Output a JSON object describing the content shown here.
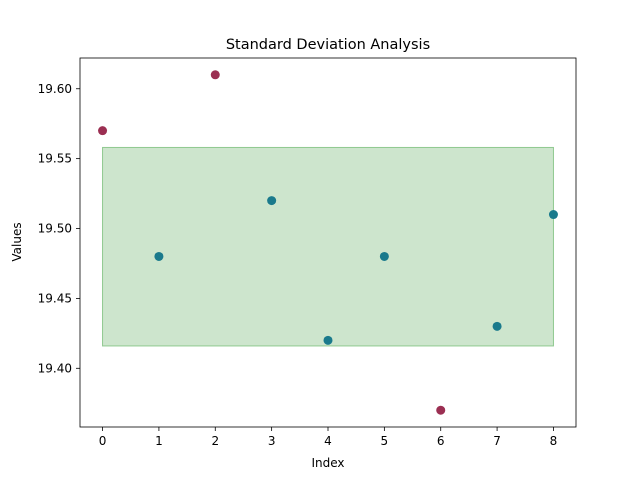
{
  "chart_data": {
    "type": "scatter",
    "title": "Standard Deviation Analysis",
    "xlabel": "Index",
    "ylabel": "Values",
    "x": [
      0,
      1,
      2,
      3,
      4,
      5,
      6,
      7,
      8
    ],
    "values": [
      19.57,
      19.48,
      19.61,
      19.52,
      19.42,
      19.48,
      19.37,
      19.43,
      19.51
    ],
    "outside_band": [
      true,
      false,
      true,
      false,
      false,
      false,
      true,
      false,
      false
    ],
    "band": {
      "lower": 19.416,
      "upper": 19.558,
      "x_start": 0,
      "x_end": 8
    },
    "xlim": [
      -0.4,
      8.4
    ],
    "ylim": [
      19.358,
      19.622
    ],
    "xticks": [
      "0",
      "1",
      "2",
      "3",
      "4",
      "5",
      "6",
      "7",
      "8"
    ],
    "yticks": [
      "19.40",
      "19.45",
      "19.50",
      "19.55",
      "19.60"
    ],
    "ytick_values": [
      19.4,
      19.45,
      19.5,
      19.55,
      19.6
    ],
    "grid": false,
    "colors": {
      "inside": "#1a7a8c",
      "outside": "#9b2f52",
      "band_fill": "#9ccc9c",
      "band_edge": "#8fc98f"
    }
  }
}
